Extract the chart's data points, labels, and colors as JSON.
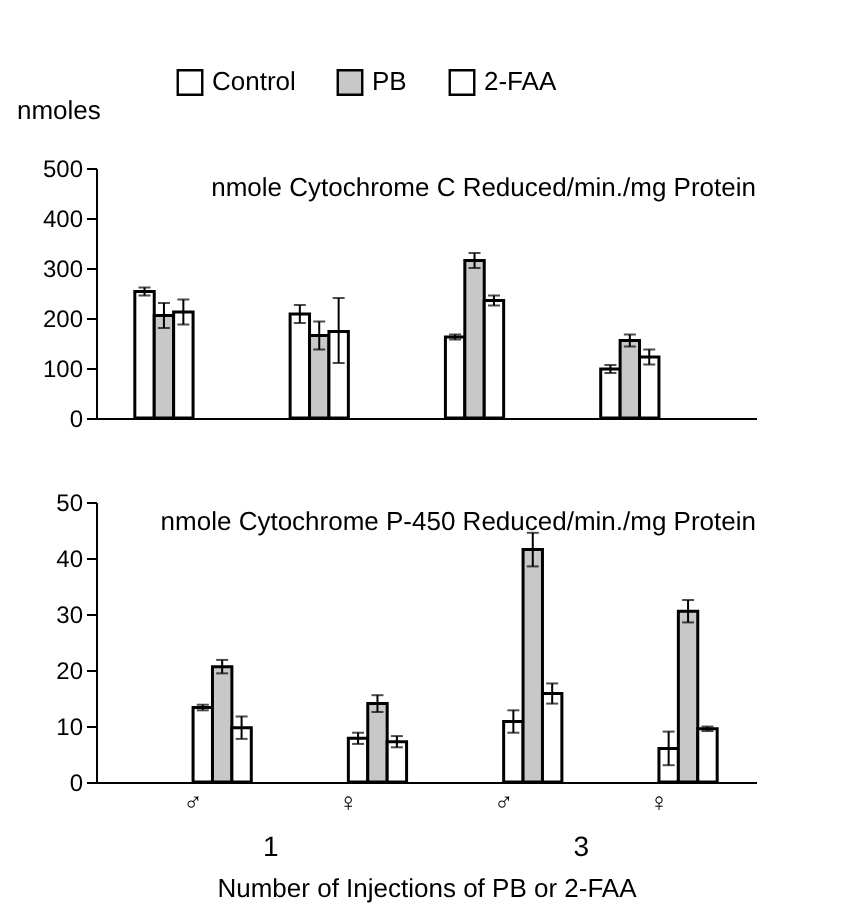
{
  "chart_data": [
    {
      "type": "bar",
      "title": "nmole Cytochrome C Reduced/min./mg Protein",
      "ylabel": "nmoles",
      "legend": "top",
      "tick_labels": "y",
      "categories": [
        null,
        null,
        null,
        null
      ],
      "series": [
        {
          "name": "Control",
          "color": "#ffffff",
          "values": [
            253,
            208,
            162,
            98
          ],
          "errors": [
            8,
            18,
            5,
            8
          ]
        },
        {
          "name": "PB",
          "color": "#c8c8c8",
          "values": [
            205,
            165,
            315,
            155
          ],
          "errors": [
            25,
            28,
            15,
            12
          ]
        },
        {
          "name": "2-FAA",
          "color": "#ffffff",
          "values": [
            212,
            173,
            235,
            122
          ],
          "errors": [
            25,
            [
              110,
              240
            ],
            10,
            15
          ]
        }
      ],
      "ylim": [
        0,
        500
      ],
      "yticks": [
        0,
        100,
        200,
        300,
        400,
        500
      ]
    },
    {
      "type": "bar",
      "title": "nmole Cytochrome P-450 Reduced/min./mg Protein",
      "xlabel": "Number of Injections of PB or 2-FAA",
      "annotations": [
        "1",
        "3"
      ],
      "categories": [
        "♂",
        "♀",
        "♂",
        "♀"
      ],
      "series": [
        {
          "color": "#ffffff",
          "values": [
            13.3,
            7.8,
            10.8,
            6
          ],
          "errors": [
            0.5,
            1,
            2,
            3
          ]
        },
        {
          "color": "#c8c8c8",
          "values": [
            20.6,
            14,
            41.5,
            30.5
          ],
          "errors": [
            1.2,
            1.5,
            3,
            2
          ]
        },
        {
          "color": "#ffffff",
          "values": [
            9.7,
            7.2,
            15.8,
            9.5
          ],
          "errors": [
            2,
            1,
            1.8,
            0.4
          ]
        }
      ],
      "ylim": [
        0,
        50
      ],
      "yticks": [
        0,
        10,
        20,
        30,
        40,
        50
      ]
    }
  ]
}
